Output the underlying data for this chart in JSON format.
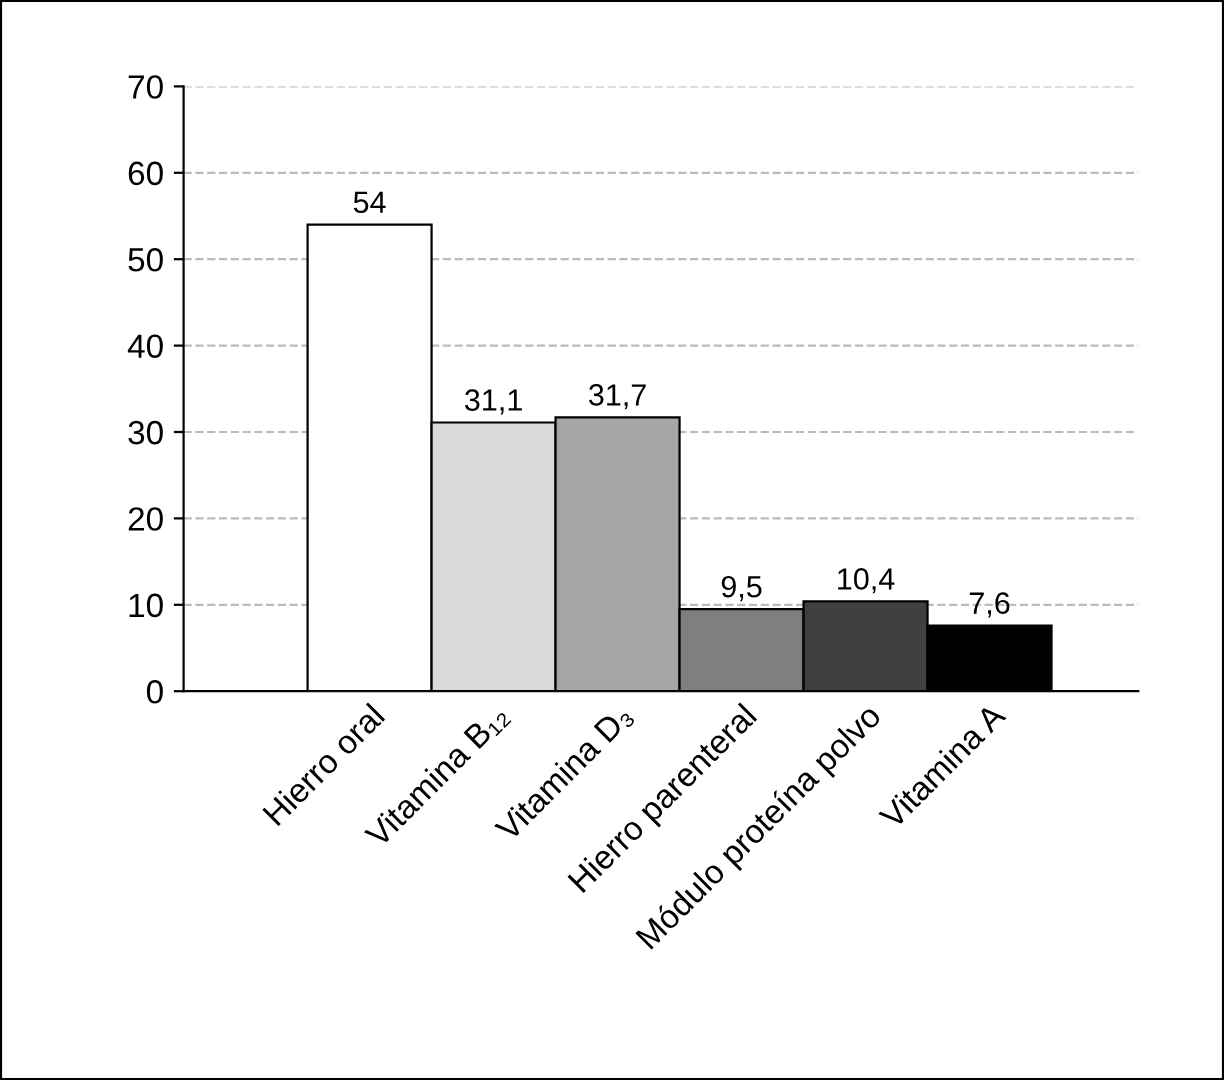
{
  "chart_data": {
    "type": "bar",
    "categories": [
      "Hierro oral",
      "Vitamina B₁₂",
      "Vitamina D₃",
      "Hierro parenteral",
      "Módulo proteína polvo",
      "Vitamina A"
    ],
    "values": [
      54,
      31.1,
      31.7,
      9.5,
      10.4,
      7.6
    ],
    "colors": [
      "#ffffff",
      "#d9d9d9",
      "#a6a6a6",
      "#7f7f7f",
      "#404040",
      "#000000"
    ],
    "value_labels": [
      "54",
      "31,1",
      "31,7",
      "9,5",
      "10,4",
      "7,6"
    ],
    "ylim": [
      0,
      70
    ],
    "yticks": [
      0,
      10,
      20,
      30,
      40,
      50,
      60,
      70
    ],
    "grid": "y"
  }
}
